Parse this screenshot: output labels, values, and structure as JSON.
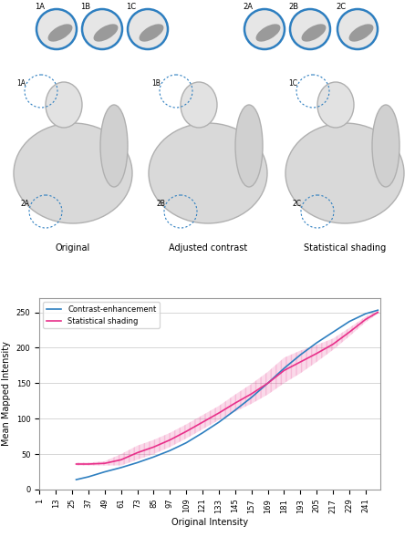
{
  "insets": [
    "1A",
    "1B",
    "1C",
    "2A",
    "2B",
    "2C"
  ],
  "panels": [
    {
      "caption": "Original",
      "markers": [
        "1A",
        "2A"
      ]
    },
    {
      "caption": "Adjusted contrast",
      "markers": [
        "1B",
        "2B"
      ]
    },
    {
      "caption": "Statistical shading",
      "markers": [
        "1C",
        "2C"
      ]
    }
  ],
  "chart_data": {
    "type": "line",
    "x_label": "Original Intensity",
    "y_label": "Mean Mapped Intensity",
    "x": [
      28,
      37,
      49,
      61,
      73,
      85,
      97,
      109,
      121,
      133,
      145,
      157,
      169,
      181,
      193,
      205,
      217,
      229,
      241,
      250
    ],
    "series": [
      {
        "name": "Contrast-enhancement",
        "color": "#2e7fc0",
        "values": [
          14,
          18,
          25,
          31,
          38,
          46,
          55,
          66,
          80,
          95,
          112,
          130,
          150,
          171,
          190,
          207,
          222,
          237,
          248,
          253
        ]
      },
      {
        "name": "Statistical shading",
        "color": "#e8308a",
        "values": [
          36,
          36,
          37,
          42,
          52,
          60,
          70,
          82,
          95,
          108,
          122,
          135,
          150,
          168,
          180,
          192,
          205,
          222,
          240,
          250
        ],
        "error": [
          2,
          2,
          3,
          8,
          10,
          10,
          10,
          10,
          10,
          10,
          12,
          14,
          16,
          18,
          16,
          12,
          8,
          6,
          4,
          2
        ]
      }
    ],
    "xlim": [
      1,
      252
    ],
    "xticks": [
      1,
      13,
      25,
      37,
      49,
      61,
      73,
      85,
      97,
      109,
      121,
      133,
      145,
      157,
      169,
      181,
      193,
      205,
      217,
      229,
      241
    ],
    "ylim": [
      0,
      270
    ],
    "yticks": [
      0,
      50,
      100,
      150,
      200,
      250
    ],
    "grid": true,
    "legend": "upper left"
  }
}
